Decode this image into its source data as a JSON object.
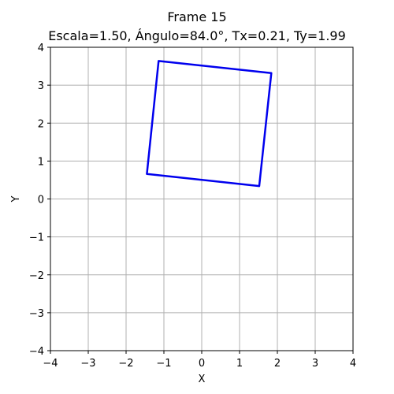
{
  "chart_data": {
    "type": "line",
    "title": "Frame 15",
    "subtitle": "Escala=1.50, Ángulo=84.0°, Tx=0.21, Ty=1.99",
    "xlabel": "X",
    "ylabel": "Y",
    "xlim": [
      -4,
      4
    ],
    "ylim": [
      -4,
      4
    ],
    "xticks": [
      -4,
      -3,
      -2,
      -1,
      0,
      1,
      2,
      3,
      4
    ],
    "yticks": [
      -4,
      -3,
      -2,
      -1,
      0,
      1,
      2,
      3,
      4
    ],
    "xtick_labels": [
      "−4",
      "−3",
      "−2",
      "−1",
      "0",
      "1",
      "2",
      "3",
      "4"
    ],
    "ytick_labels": [
      "−4",
      "−3",
      "−2",
      "−1",
      "0",
      "1",
      "2",
      "3",
      "4"
    ],
    "grid": true,
    "series": [
      {
        "color": "#0000ee",
        "closed": true,
        "points": [
          {
            "x": -1.45,
            "y": 0.66
          },
          {
            "x": 1.52,
            "y": 0.34
          },
          {
            "x": 1.84,
            "y": 3.32
          },
          {
            "x": -1.14,
            "y": 3.64
          }
        ]
      }
    ]
  },
  "colors": {
    "grid": "#b0b0b0",
    "axes": "#000000",
    "shape": "#0000ee"
  }
}
